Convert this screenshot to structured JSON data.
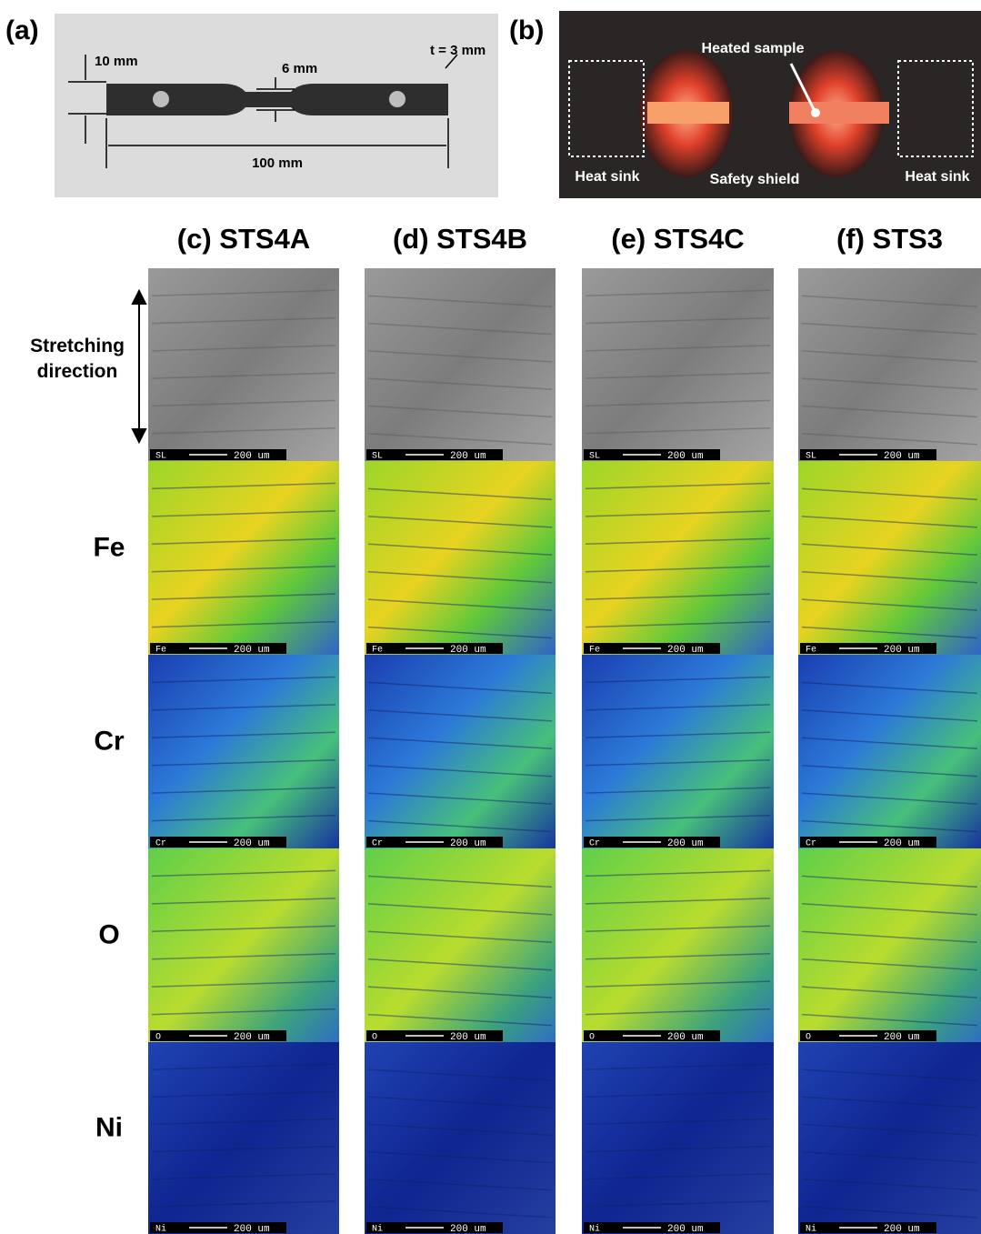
{
  "panel_a": {
    "label": "(a)",
    "width_dim": "10 mm",
    "gauge_dim": "6 mm",
    "thickness_dim": "t = 3 mm",
    "length_dim": "100 mm"
  },
  "panel_b": {
    "label": "(b)",
    "sample_label": "Heated sample",
    "left_sink_label": "Heat sink",
    "shield_label": "Safety shield",
    "right_sink_label": "Heat sink"
  },
  "columns": [
    "(c) STS4A",
    "(d) STS4B",
    "(e) STS4C",
    "(f) STS3"
  ],
  "rows": [
    {
      "label": "Stretching direction",
      "tile_label": "SL"
    },
    {
      "label": "Fe",
      "tile_label": "Fe"
    },
    {
      "label": "Cr",
      "tile_label": "Cr"
    },
    {
      "label": "O",
      "tile_label": "O"
    },
    {
      "label": "Ni",
      "tile_label": "Ni"
    }
  ],
  "scale_bar": "200 um"
}
